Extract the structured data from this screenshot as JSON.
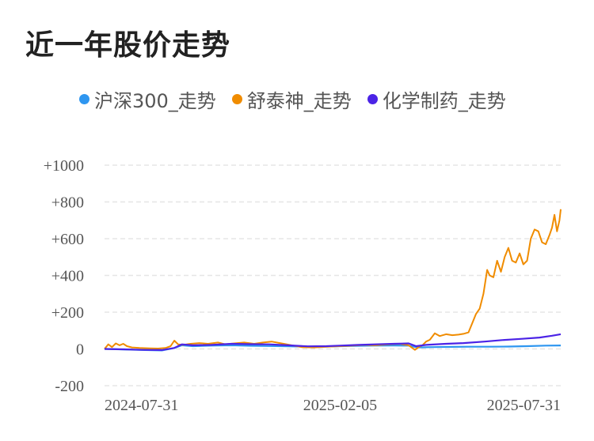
{
  "title": "近一年股价走势",
  "chart_data": {
    "type": "line",
    "title": "近一年股价走势",
    "xlabel": "",
    "ylabel": "",
    "ylim": [
      -200,
      1000
    ],
    "grid": true,
    "legend_position": "top",
    "y_ticks": [
      "+1000",
      "+800",
      "+600",
      "+400",
      "+200",
      "0",
      "-200"
    ],
    "y_tick_values": [
      1000,
      800,
      600,
      400,
      200,
      0,
      -200
    ],
    "x_ticks": [
      "2024-07-31",
      "2025-02-05",
      "2025-07-31"
    ],
    "x_range": [
      "2024-07-31",
      "2025-08-01"
    ],
    "series": [
      {
        "name": "沪深300_走势",
        "color": "#2e96f0",
        "x": [
          "2024-07-31",
          "2024-08-15",
          "2024-09-01",
          "2024-09-15",
          "2024-09-25",
          "2024-10-01",
          "2024-10-10",
          "2024-10-25",
          "2024-11-10",
          "2024-11-25",
          "2024-12-10",
          "2024-12-25",
          "2025-01-10",
          "2025-01-25",
          "2025-02-05",
          "2025-02-20",
          "2025-03-05",
          "2025-03-20",
          "2025-04-01",
          "2025-04-08",
          "2025-04-20",
          "2025-05-05",
          "2025-05-20",
          "2025-06-05",
          "2025-06-20",
          "2025-07-05",
          "2025-07-20",
          "2025-08-01"
        ],
        "y": [
          0,
          -3,
          -6,
          -8,
          5,
          20,
          15,
          18,
          20,
          17,
          16,
          14,
          12,
          13,
          15,
          17,
          18,
          19,
          18,
          8,
          10,
          11,
          12,
          12,
          13,
          15,
          18,
          19
        ]
      },
      {
        "name": "舒泰神_走势",
        "color": "#f08c00",
        "x": [
          "2024-07-31",
          "2024-08-03",
          "2024-08-06",
          "2024-08-09",
          "2024-08-12",
          "2024-08-15",
          "2024-08-18",
          "2024-08-22",
          "2024-08-28",
          "2024-09-05",
          "2024-09-12",
          "2024-09-18",
          "2024-09-22",
          "2024-09-25",
          "2024-09-28",
          "2024-10-02",
          "2024-10-08",
          "2024-10-15",
          "2024-10-22",
          "2024-10-30",
          "2024-11-05",
          "2024-11-12",
          "2024-11-20",
          "2024-11-28",
          "2024-12-05",
          "2024-12-12",
          "2024-12-20",
          "2024-12-28",
          "2025-01-05",
          "2025-01-15",
          "2025-01-25",
          "2025-02-05",
          "2025-02-15",
          "2025-02-25",
          "2025-03-05",
          "2025-03-15",
          "2025-03-25",
          "2025-04-01",
          "2025-04-06",
          "2025-04-09",
          "2025-04-12",
          "2025-04-15",
          "2025-04-18",
          "2025-04-22",
          "2025-04-26",
          "2025-05-01",
          "2025-05-06",
          "2025-05-11",
          "2025-05-15",
          "2025-05-19",
          "2025-05-22",
          "2025-05-25",
          "2025-05-28",
          "2025-05-31",
          "2025-06-03",
          "2025-06-05",
          "2025-06-08",
          "2025-06-11",
          "2025-06-14",
          "2025-06-17",
          "2025-06-20",
          "2025-06-23",
          "2025-06-26",
          "2025-06-29",
          "2025-07-02",
          "2025-07-05",
          "2025-07-08",
          "2025-07-11",
          "2025-07-14",
          "2025-07-17",
          "2025-07-20",
          "2025-07-23",
          "2025-07-25",
          "2025-07-27",
          "2025-07-29",
          "2025-07-31",
          "2025-08-01"
        ],
        "y": [
          0,
          25,
          10,
          30,
          20,
          28,
          15,
          8,
          5,
          3,
          2,
          5,
          15,
          45,
          25,
          22,
          28,
          32,
          28,
          35,
          25,
          30,
          35,
          28,
          35,
          40,
          30,
          20,
          10,
          8,
          12,
          15,
          18,
          22,
          20,
          25,
          28,
          20,
          -5,
          10,
          20,
          40,
          50,
          85,
          70,
          80,
          75,
          78,
          82,
          90,
          140,
          190,
          220,
          300,
          430,
          400,
          390,
          480,
          420,
          500,
          550,
          480,
          470,
          520,
          460,
          480,
          600,
          650,
          640,
          580,
          570,
          620,
          660,
          730,
          640,
          700,
          760
        ]
      },
      {
        "name": "化学制药_走势",
        "color": "#4b23e6",
        "x": [
          "2024-07-31",
          "2024-08-15",
          "2024-09-01",
          "2024-09-15",
          "2024-09-25",
          "2024-10-01",
          "2024-10-10",
          "2024-10-25",
          "2024-11-10",
          "2024-11-25",
          "2024-12-10",
          "2024-12-25",
          "2025-01-10",
          "2025-01-25",
          "2025-02-05",
          "2025-02-20",
          "2025-03-05",
          "2025-03-20",
          "2025-04-01",
          "2025-04-07",
          "2025-04-15",
          "2025-05-01",
          "2025-05-15",
          "2025-06-01",
          "2025-06-15",
          "2025-07-01",
          "2025-07-15",
          "2025-07-25",
          "2025-08-01"
        ],
        "y": [
          0,
          -2,
          -5,
          -6,
          5,
          25,
          20,
          22,
          28,
          26,
          25,
          20,
          14,
          15,
          18,
          22,
          25,
          28,
          30,
          15,
          22,
          28,
          32,
          40,
          48,
          55,
          62,
          72,
          80
        ]
      }
    ]
  }
}
